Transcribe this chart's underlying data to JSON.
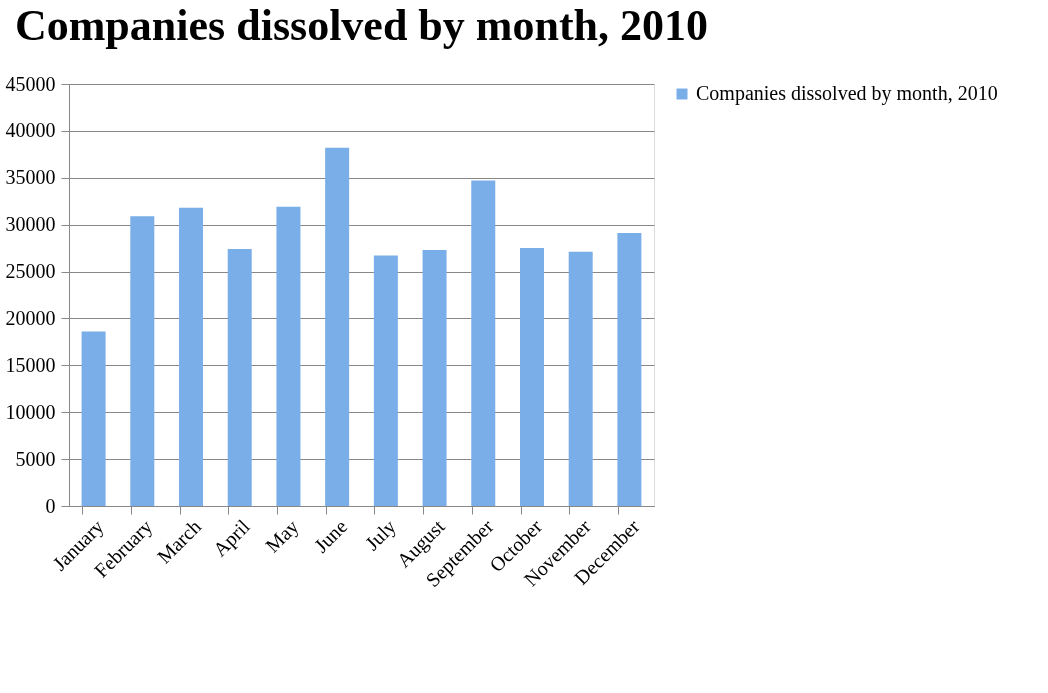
{
  "chart_data": {
    "type": "bar",
    "title": "Companies dissolved by month, 2010",
    "categories": [
      "January",
      "February",
      "March",
      "April",
      "May",
      "June",
      "July",
      "August",
      "September",
      "October",
      "November",
      "December"
    ],
    "series": [
      {
        "name": "Companies dissolved by month, 2010",
        "color": "#7aaee8",
        "values": [
          18600,
          30900,
          31800,
          27400,
          31900,
          38200,
          26700,
          27300,
          34700,
          27500,
          27100,
          29100
        ]
      }
    ],
    "ylim": [
      0,
      45000
    ],
    "yticks": [
      0,
      5000,
      10000,
      15000,
      20000,
      25000,
      30000,
      35000,
      40000,
      45000
    ],
    "grid": "y",
    "legend": "right"
  }
}
